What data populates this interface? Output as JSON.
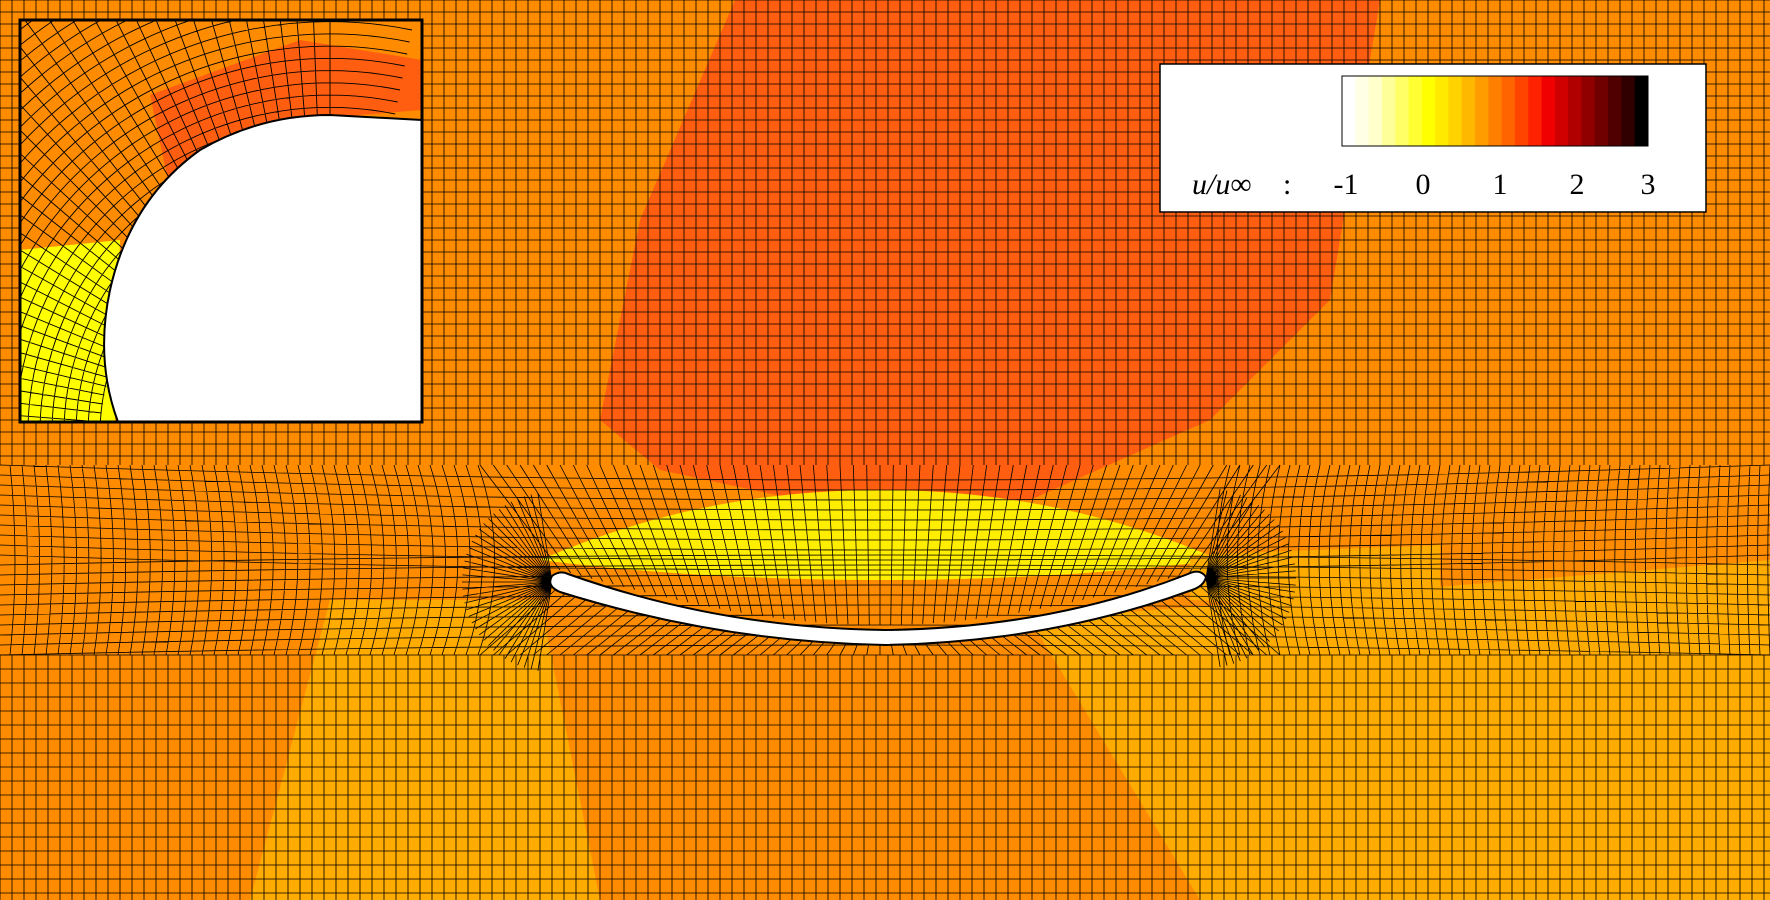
{
  "figure": {
    "colors": {
      "background": "#ff8c00",
      "high_zone": "#ff5e10",
      "low_zone": "#ffab00",
      "near_body": "#ffff00",
      "mesh_line": "#000000",
      "body": "#ffffff"
    }
  },
  "legend": {
    "variable_part1": "u",
    "variable_part2": "/u",
    "variable_part3": "∞",
    "separator": ":",
    "ticks": [
      "-1",
      "0",
      "1",
      "2",
      "3"
    ],
    "colormap": [
      "#ffffff",
      "#ffffe6",
      "#ffffcc",
      "#ffff99",
      "#ffff66",
      "#ffff33",
      "#ffff00",
      "#ffea00",
      "#ffd200",
      "#ffb800",
      "#ff9d00",
      "#ff8000",
      "#ff6400",
      "#ff4400",
      "#ff2200",
      "#f00000",
      "#d00000",
      "#b00000",
      "#900000",
      "#700000",
      "#500000",
      "#300000",
      "#000000"
    ]
  }
}
